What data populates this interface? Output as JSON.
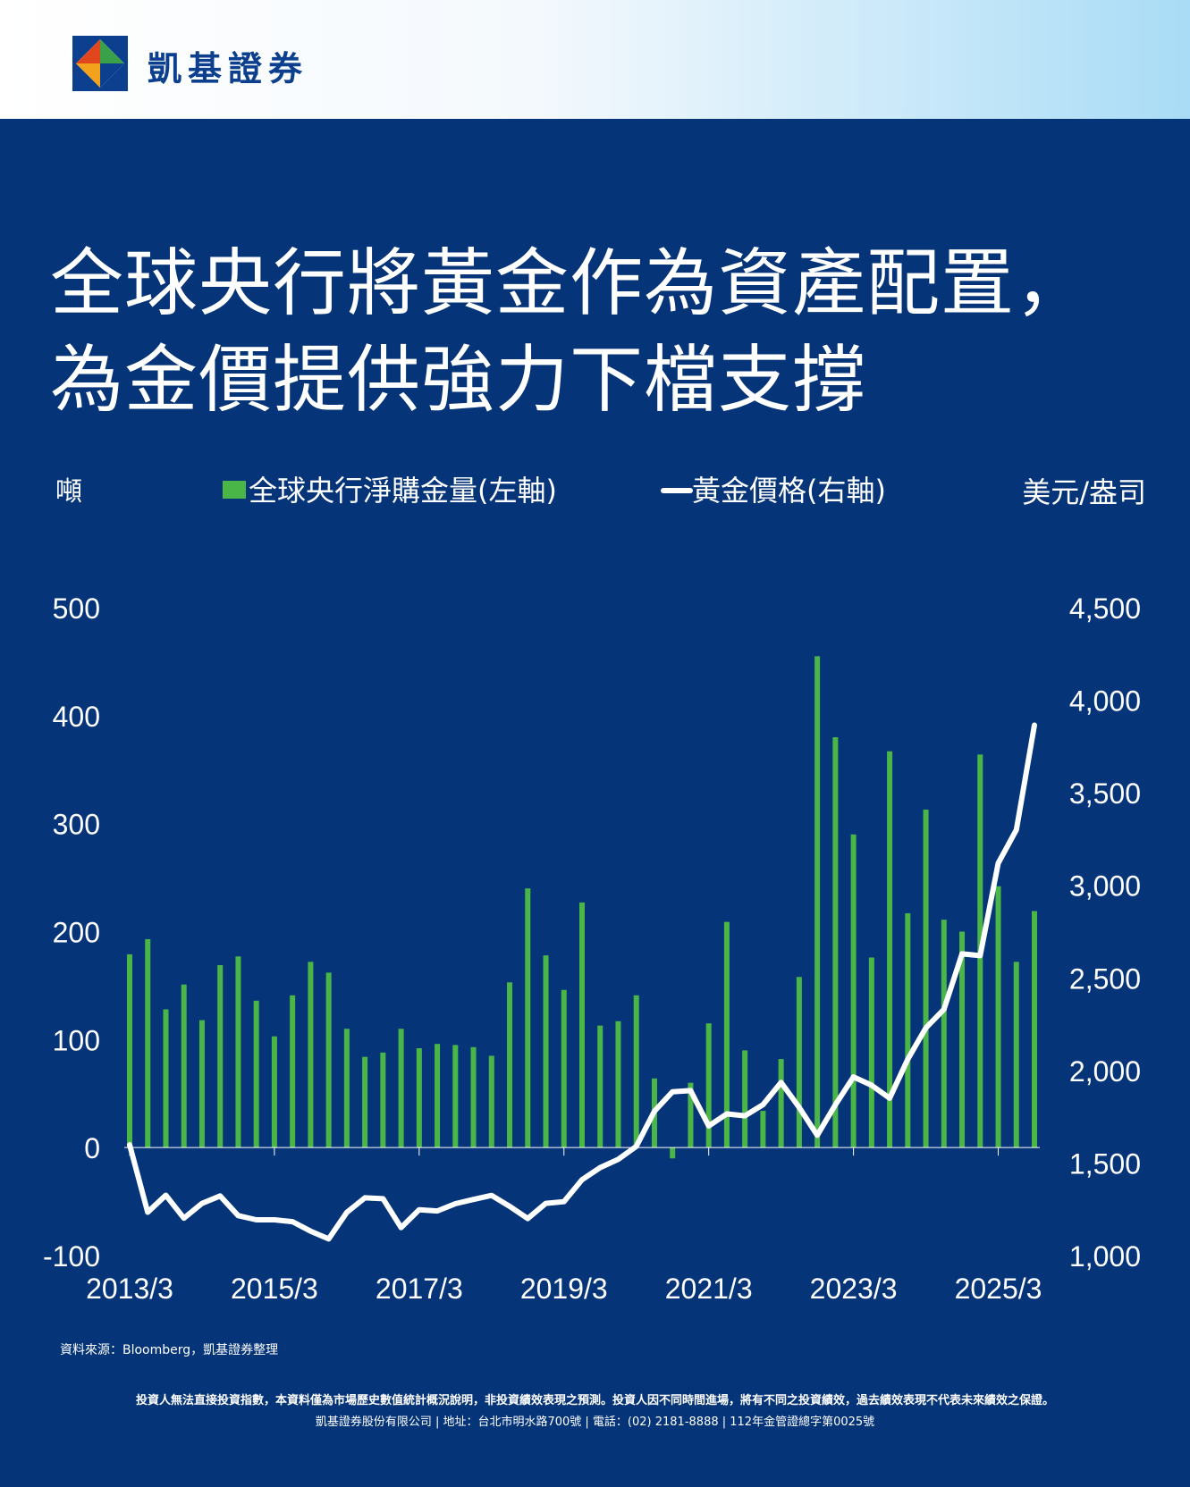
{
  "brand": {
    "name": "凱基證券"
  },
  "headline": {
    "line1": "全球央行將黃金作為資產配置，",
    "line2": "為金價提供強力下檔支撐"
  },
  "colors": {
    "background": "#053478",
    "bar": "#4bb648",
    "line": "#ffffff",
    "header_gradient_end": "#a9dcf6"
  },
  "chart_data": {
    "type": "bar+line",
    "left_axis_unit": "噸",
    "right_axis_unit": "美元/盎司",
    "legend": {
      "bar_label": "全球央行淨購金量(左軸)",
      "line_label": "黃金價格(右軸)"
    },
    "y_left": {
      "min": -100,
      "max": 500,
      "ticks": [
        "500",
        "400",
        "300",
        "200",
        "100",
        "0",
        "-100"
      ]
    },
    "y_right": {
      "min": 1000,
      "max": 4500,
      "ticks": [
        "4,500",
        "4,000",
        "3,500",
        "3,000",
        "2,500",
        "2,000",
        "1,500",
        "1,000"
      ]
    },
    "x_tick_labels": [
      "2013/3",
      "2015/3",
      "2017/3",
      "2019/3",
      "2021/3",
      "2023/3",
      "2025/3"
    ],
    "series": [
      {
        "name": "全球央行淨購金量(左軸)",
        "kind": "bar",
        "values": [
          179,
          193,
          128,
          151,
          118,
          169,
          177,
          136,
          103,
          141,
          172,
          162,
          110,
          84,
          88,
          110,
          92,
          96,
          95,
          93,
          85,
          153,
          240,
          178,
          146,
          227,
          113,
          117,
          141,
          64,
          -10,
          60,
          115,
          209,
          90,
          34,
          82,
          158,
          455,
          380,
          290,
          176,
          367,
          217,
          313,
          211,
          200,
          364,
          242,
          172,
          219
        ]
      },
      {
        "name": "黃金價格(右軸)",
        "kind": "line",
        "values": [
          1598,
          1234,
          1326,
          1202,
          1282,
          1322,
          1216,
          1193,
          1193,
          1183,
          1132,
          1090,
          1233,
          1312,
          1307,
          1151,
          1247,
          1241,
          1280,
          1303,
          1325,
          1266,
          1200,
          1282,
          1291,
          1410,
          1475,
          1520,
          1590,
          1780,
          1885,
          1891,
          1700,
          1765,
          1755,
          1815,
          1935,
          1800,
          1650,
          1815,
          1965,
          1920,
          1850,
          2060,
          2230,
          2330,
          2630,
          2620,
          3120,
          3300,
          3865
        ]
      }
    ]
  },
  "source_note": "資料來源：Bloomberg，凱基證券整理",
  "disclaimer": "投資人無法直接投資指數，本資料僅為市場歷史數值統計概況說明，非投資績效表現之預測。投資人因不同時間進場，將有不同之投資績效，過去績效表現不代表未來績效之保證。",
  "company_info": "凱基證券股份有限公司 | 地址：台北市明水路700號 | 電話：(02) 2181-8888 | 112年金管證總字第0025號"
}
